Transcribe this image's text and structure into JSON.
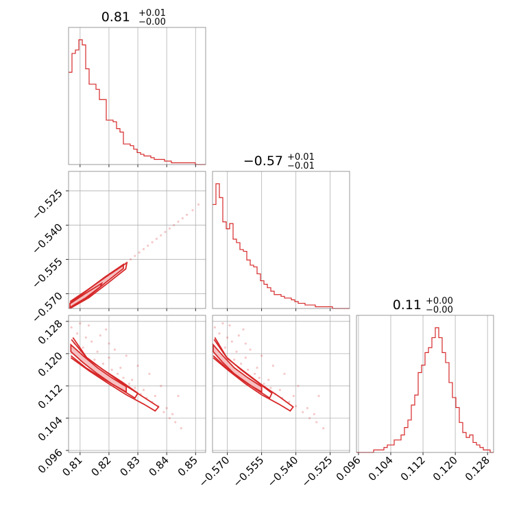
{
  "chart_data": {
    "type": "corner",
    "color": "#d62728",
    "fill_color": "#f4b6b7",
    "grid": true,
    "parameters": [
      {
        "index": 0,
        "median": "0.81",
        "err_plus": "+0.01",
        "err_minus": "−0.00",
        "range": [
          0.806,
          0.8535
        ],
        "ticks": [
          0.81,
          0.82,
          0.83,
          0.84,
          0.85
        ],
        "tick_labels": [
          "0.81",
          "0.82",
          "0.83",
          "0.84",
          "0.85"
        ]
      },
      {
        "index": 1,
        "median": "−0.57",
        "err_plus": "+0.01",
        "err_minus": "−0.01",
        "range": [
          -0.5765,
          -0.5165
        ],
        "ticks": [
          -0.57,
          -0.555,
          -0.54,
          -0.525
        ],
        "tick_labels": [
          "−0.570",
          "−0.555",
          "−0.540",
          "−0.525"
        ]
      },
      {
        "index": 2,
        "median": "0.11",
        "err_plus": "+0.00",
        "err_minus": "−0.00",
        "range": [
          0.0955,
          0.1295
        ],
        "ticks": [
          0.096,
          0.104,
          0.112,
          0.12,
          0.128
        ],
        "tick_labels": [
          "0.096",
          "0.104",
          "0.112",
          "0.120",
          "0.128"
        ]
      }
    ],
    "histograms": [
      {
        "param": 0,
        "counts": [
          54,
          65,
          67,
          73,
          70,
          56,
          47,
          47,
          44,
          38,
          38,
          26,
          26,
          25,
          21,
          19,
          12,
          12,
          11,
          9,
          7,
          6,
          5,
          5,
          4,
          3,
          3,
          3,
          2,
          2,
          1,
          1,
          1,
          1,
          1,
          1,
          1,
          0,
          0,
          0
        ]
      },
      {
        "param": 1,
        "counts": [
          60,
          72,
          64,
          50,
          46,
          49,
          40,
          38,
          34,
          33,
          28,
          25,
          24,
          20,
          16,
          14,
          12,
          10,
          8,
          8,
          7,
          6,
          6,
          5,
          4,
          3,
          3,
          2,
          2,
          2,
          1,
          1,
          1,
          1,
          1,
          0,
          0,
          0,
          0,
          0
        ]
      },
      {
        "param": 2,
        "counts": [
          0,
          0,
          0,
          0,
          0,
          1,
          1,
          1,
          2,
          3,
          3,
          5,
          5,
          7,
          10,
          13,
          19,
          23,
          32,
          35,
          40,
          42,
          46,
          50,
          46,
          40,
          36,
          28,
          22,
          18,
          12,
          8,
          6,
          7,
          4,
          3,
          2,
          1,
          1,
          0
        ]
      }
    ],
    "scatter_panels": [
      {
        "x_param": 0,
        "y_param": 1,
        "relation": "linear",
        "points": [
          [
            0.8065,
            -0.576
          ],
          [
            0.808,
            -0.5745
          ],
          [
            0.8095,
            -0.573
          ],
          [
            0.811,
            -0.5715
          ],
          [
            0.8125,
            -0.57
          ],
          [
            0.814,
            -0.5685
          ],
          [
            0.8155,
            -0.567
          ],
          [
            0.817,
            -0.5655
          ],
          [
            0.8185,
            -0.564
          ],
          [
            0.82,
            -0.5625
          ],
          [
            0.8215,
            -0.561
          ],
          [
            0.823,
            -0.5595
          ],
          [
            0.8245,
            -0.558
          ],
          [
            0.826,
            -0.5565
          ],
          [
            0.8275,
            -0.555
          ],
          [
            0.829,
            -0.5535
          ],
          [
            0.8305,
            -0.552
          ],
          [
            0.832,
            -0.5505
          ],
          [
            0.8335,
            -0.549
          ],
          [
            0.835,
            -0.5475
          ],
          [
            0.8365,
            -0.546
          ],
          [
            0.838,
            -0.5445
          ],
          [
            0.8395,
            -0.543
          ],
          [
            0.841,
            -0.5415
          ],
          [
            0.8425,
            -0.54
          ],
          [
            0.844,
            -0.5385
          ],
          [
            0.8455,
            -0.537
          ],
          [
            0.847,
            -0.5355
          ],
          [
            0.849,
            -0.5335
          ],
          [
            0.851,
            -0.531
          ]
        ],
        "contour_filled": [
          [
            0.8065,
            -0.5762
          ],
          [
            0.813,
            -0.5712
          ],
          [
            0.819,
            -0.565
          ],
          [
            0.825,
            -0.559
          ],
          [
            0.825,
            -0.5572
          ],
          [
            0.8185,
            -0.5628
          ],
          [
            0.812,
            -0.569
          ],
          [
            0.8065,
            -0.5742
          ]
        ],
        "contour_lines": [
          [
            [
              0.8065,
              -0.5765
            ],
            [
              0.813,
              -0.5718
            ],
            [
              0.8195,
              -0.5655
            ],
            [
              0.8258,
              -0.5592
            ],
            [
              0.8262,
              -0.5565
            ],
            [
              0.8195,
              -0.5622
            ],
            [
              0.8125,
              -0.5684
            ],
            [
              0.8065,
              -0.5735
            ]
          ],
          [
            [
              0.8065,
              -0.576
            ],
            [
              0.812,
              -0.5718
            ],
            [
              0.817,
              -0.567
            ],
            [
              0.8175,
              -0.5655
            ],
            [
              0.812,
              -0.5698
            ],
            [
              0.8065,
              -0.5744
            ]
          ]
        ]
      },
      {
        "x_param": 0,
        "y_param": 2,
        "relation": "negative-curved",
        "points": [
          [
            0.807,
            0.1265
          ],
          [
            0.809,
            0.125
          ],
          [
            0.81,
            0.1275
          ],
          [
            0.812,
            0.124
          ],
          [
            0.808,
            0.1225
          ],
          [
            0.811,
            0.1215
          ],
          [
            0.814,
            0.123
          ],
          [
            0.816,
            0.1205
          ],
          [
            0.815,
            0.1185
          ],
          [
            0.818,
            0.1175
          ],
          [
            0.82,
            0.119
          ],
          [
            0.821,
            0.116
          ],
          [
            0.823,
            0.115
          ],
          [
            0.825,
            0.114
          ],
          [
            0.824,
            0.1165
          ],
          [
            0.827,
            0.1125
          ],
          [
            0.829,
            0.1115
          ],
          [
            0.828,
            0.1135
          ],
          [
            0.831,
            0.11
          ],
          [
            0.833,
            0.109
          ],
          [
            0.832,
            0.111
          ],
          [
            0.835,
            0.108
          ],
          [
            0.837,
            0.107
          ],
          [
            0.836,
            0.1095
          ],
          [
            0.839,
            0.1055
          ],
          [
            0.841,
            0.104
          ],
          [
            0.84,
            0.1065
          ],
          [
            0.843,
            0.103
          ],
          [
            0.842,
            0.105
          ],
          [
            0.845,
            0.1015
          ],
          [
            0.817,
            0.1245
          ],
          [
            0.813,
            0.127
          ],
          [
            0.82,
            0.1225
          ],
          [
            0.826,
            0.1195
          ],
          [
            0.83,
            0.117
          ],
          [
            0.834,
            0.115
          ],
          [
            0.822,
            0.121
          ],
          [
            0.819,
            0.126
          ],
          [
            0.838,
            0.112
          ],
          [
            0.844,
            0.1095
          ]
        ],
        "contour_filled": [
          [
            0.8068,
            0.1205
          ],
          [
            0.811,
            0.1178
          ],
          [
            0.816,
            0.115
          ],
          [
            0.821,
            0.1125
          ],
          [
            0.826,
            0.1105
          ],
          [
            0.826,
            0.1118
          ],
          [
            0.821,
            0.114
          ],
          [
            0.816,
            0.1165
          ],
          [
            0.811,
            0.1195
          ],
          [
            0.8068,
            0.1222
          ]
        ],
        "contour_lines": [
          [
            [
              0.8068,
              0.1195
            ],
            [
              0.812,
              0.1165
            ],
            [
              0.818,
              0.1138
            ],
            [
              0.824,
              0.1112
            ],
            [
              0.829,
              0.109
            ],
            [
              0.83,
              0.1102
            ],
            [
              0.8245,
              0.113
            ],
            [
              0.818,
              0.116
            ],
            [
              0.812,
              0.1192
            ],
            [
              0.807,
              0.1235
            ]
          ],
          [
            [
              0.8068,
              0.119
            ],
            [
              0.813,
              0.1158
            ],
            [
              0.82,
              0.1125
            ],
            [
              0.826,
              0.1098
            ],
            [
              0.832,
              0.1075
            ],
            [
              0.836,
              0.1058
            ],
            [
              0.8372,
              0.1068
            ],
            [
              0.832,
              0.1092
            ],
            [
              0.8255,
              0.1122
            ],
            [
              0.819,
              0.1155
            ],
            [
              0.8125,
              0.1188
            ],
            [
              0.8075,
              0.124
            ]
          ]
        ]
      },
      {
        "x_param": 1,
        "y_param": 2,
        "relation": "negative-curved",
        "points": [
          [
            -0.5755,
            0.1265
          ],
          [
            -0.5735,
            0.125
          ],
          [
            -0.572,
            0.1275
          ],
          [
            -0.57,
            0.124
          ],
          [
            -0.574,
            0.1225
          ],
          [
            -0.571,
            0.1215
          ],
          [
            -0.568,
            0.123
          ],
          [
            -0.566,
            0.1205
          ],
          [
            -0.567,
            0.1185
          ],
          [
            -0.564,
            0.1175
          ],
          [
            -0.562,
            0.119
          ],
          [
            -0.561,
            0.116
          ],
          [
            -0.558,
            0.115
          ],
          [
            -0.556,
            0.114
          ],
          [
            -0.557,
            0.1165
          ],
          [
            -0.554,
            0.1125
          ],
          [
            -0.551,
            0.1115
          ],
          [
            -0.552,
            0.1135
          ],
          [
            -0.549,
            0.11
          ],
          [
            -0.546,
            0.109
          ],
          [
            -0.547,
            0.111
          ],
          [
            -0.543,
            0.108
          ],
          [
            -0.54,
            0.107
          ],
          [
            -0.541,
            0.1095
          ],
          [
            -0.537,
            0.1055
          ],
          [
            -0.534,
            0.104
          ],
          [
            -0.535,
            0.1065
          ],
          [
            -0.531,
            0.103
          ],
          [
            -0.532,
            0.105
          ],
          [
            -0.528,
            0.1015
          ],
          [
            -0.565,
            0.1245
          ],
          [
            -0.569,
            0.127
          ],
          [
            -0.562,
            0.1225
          ],
          [
            -0.555,
            0.1195
          ],
          [
            -0.55,
            0.117
          ],
          [
            -0.545,
            0.115
          ],
          [
            -0.56,
            0.121
          ],
          [
            -0.563,
            0.126
          ],
          [
            -0.539,
            0.112
          ],
          [
            -0.53,
            0.1095
          ]
        ],
        "contour_filled": [
          [
            -0.5762,
            0.1205
          ],
          [
            -0.572,
            0.1178
          ],
          [
            -0.567,
            0.115
          ],
          [
            -0.561,
            0.1125
          ],
          [
            -0.555,
            0.1105
          ],
          [
            -0.555,
            0.1118
          ],
          [
            -0.561,
            0.114
          ],
          [
            -0.567,
            0.1165
          ],
          [
            -0.572,
            0.1195
          ],
          [
            -0.5762,
            0.1222
          ]
        ],
        "contour_lines": [
          [
            [
              -0.5762,
              0.1195
            ],
            [
              -0.5705,
              0.1165
            ],
            [
              -0.564,
              0.1138
            ],
            [
              -0.5575,
              0.1112
            ],
            [
              -0.5515,
              0.109
            ],
            [
              -0.5505,
              0.1102
            ],
            [
              -0.557,
              0.113
            ],
            [
              -0.564,
              0.116
            ],
            [
              -0.5705,
              0.1192
            ],
            [
              -0.5758,
              0.1235
            ]
          ],
          [
            [
              -0.5762,
              0.119
            ],
            [
              -0.5695,
              0.1158
            ],
            [
              -0.562,
              0.1125
            ],
            [
              -0.555,
              0.1098
            ],
            [
              -0.5475,
              0.1075
            ],
            [
              -0.5425,
              0.1058
            ],
            [
              -0.5412,
              0.1068
            ],
            [
              -0.547,
              0.1092
            ],
            [
              -0.5548,
              0.1122
            ],
            [
              -0.5625,
              0.1155
            ],
            [
              -0.57,
              0.1188
            ],
            [
              -0.5755,
              0.124
            ]
          ]
        ]
      }
    ]
  }
}
